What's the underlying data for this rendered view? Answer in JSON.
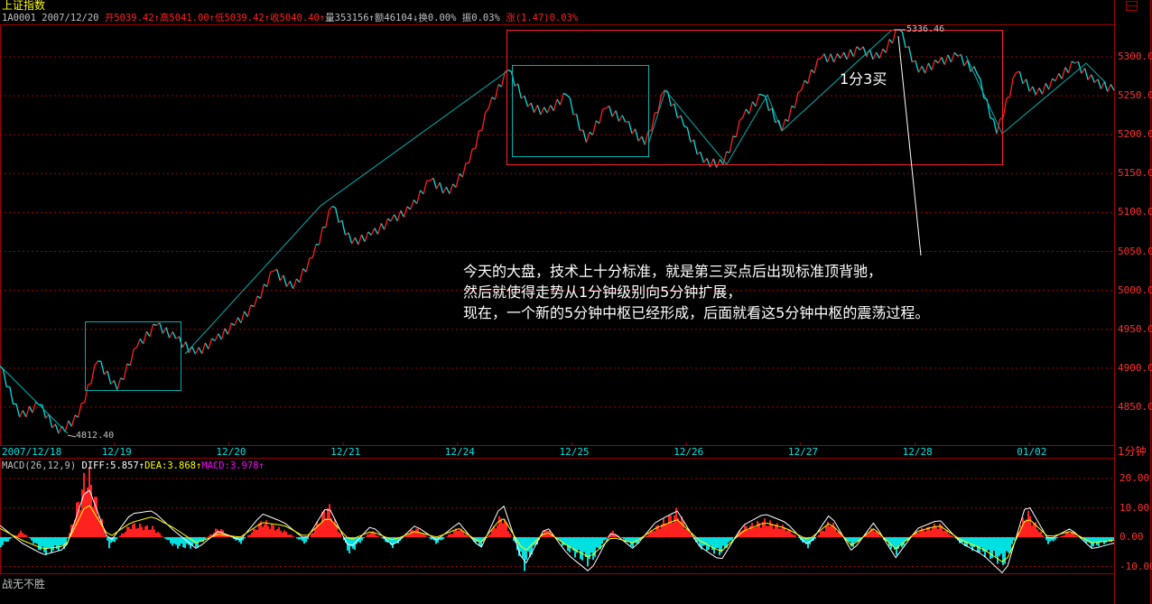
{
  "header": {
    "title": "上证指数",
    "code": "1A0001",
    "date": "2007/12/20",
    "open": "开5039.42↑",
    "high": "高5041.00↑",
    "low": "低5039.42↑",
    "close": "收5040.40↑",
    "volume": "量353156↑",
    "amount": "额46104↓",
    "turnover": "换0.00%",
    "amplitude": "振0.03%",
    "change": "涨(1.47)0.03%"
  },
  "colors": {
    "up": "#ff2020",
    "down": "#00e0e0",
    "grid": "#a00000",
    "trend": "#00b0b0",
    "box_red": "#ff2020"
  },
  "chart_data": [
    {
      "type": "line",
      "name": "price",
      "ylim": [
        4800,
        5340
      ],
      "yticks": [
        4850,
        4900,
        4950,
        5000,
        5050,
        5100,
        5150,
        5200,
        5250,
        5300
      ],
      "ytick_labels": [
        "4850.00",
        "4900.00",
        "4950.00",
        "5000.00",
        "5050.00",
        "5100.00",
        "5150.00",
        "5200.00",
        "5250.00",
        "5300.00"
      ],
      "xtick_labels": [
        "2007/12/18",
        "12/19",
        "12/20",
        "12/21",
        "12/24",
        "12/25",
        "12/26",
        "12/27",
        "12/28",
        "01/02"
      ],
      "period": "1分钟",
      "high_label": "5336.46",
      "low_label": "4812.40",
      "values": [
        4903,
        4837,
        4853,
        4816,
        4837,
        4909,
        4872,
        4927,
        4955,
        4938,
        4918,
        4935,
        4955,
        4979,
        5025,
        5002,
        5042,
        5108,
        5060,
        5071,
        5089,
        5104,
        5141,
        5124,
        5164,
        5234,
        5283,
        5236,
        5228,
        5251,
        5190,
        5234,
        5216,
        5187,
        5257,
        5211,
        5164,
        5162,
        5222,
        5251,
        5205,
        5257,
        5298,
        5298,
        5309,
        5298,
        5335,
        5280,
        5292,
        5301,
        5278,
        5201,
        5280,
        5251,
        5269,
        5292,
        5267,
        5257
      ],
      "grid": true
    },
    {
      "type": "bar",
      "name": "MACD",
      "label": "MACD(26,12,9)",
      "diff_label": "DIFF:5.857↑",
      "dea_label": "DEA:3.868↑",
      "macd_label": "MACD:3.978↑",
      "ylim": [
        -14,
        24
      ],
      "yticks": [
        -10,
        0,
        10,
        20
      ],
      "ytick_labels": [
        "-10.00",
        "0.00",
        "10.00",
        "20.00"
      ],
      "hist": [
        -3,
        2,
        -5,
        -3,
        21,
        -3,
        4,
        3,
        -3,
        -3,
        3,
        -2,
        5,
        2,
        -2,
        10,
        -5,
        2,
        -3,
        3,
        -2,
        3,
        -3,
        7,
        -9,
        3,
        -4,
        -8,
        2,
        -3,
        3,
        8,
        -3,
        -5,
        3,
        5,
        3,
        -3,
        5,
        -3,
        3,
        -5,
        2,
        4,
        -2,
        -5,
        -8,
        8,
        -2,
        2,
        -3,
        -1
      ],
      "diff": [
        4,
        -2,
        -6,
        -4,
        18,
        -2,
        8,
        9,
        2,
        -4,
        2,
        -1,
        8,
        5,
        -1,
        11,
        -4,
        4,
        -3,
        4,
        -1,
        5,
        -4,
        12,
        -10,
        4,
        -6,
        -12,
        2,
        -4,
        5,
        9,
        -3,
        -8,
        4,
        8,
        5,
        -3,
        8,
        -5,
        5,
        -7,
        3,
        6,
        -2,
        -6,
        -13,
        12,
        -1,
        3,
        -4,
        -2
      ],
      "dea": [
        3,
        -1,
        -4,
        -3,
        12,
        0,
        5,
        7,
        3,
        -2,
        1,
        0,
        5,
        4,
        0,
        7,
        -1,
        2,
        -1,
        2,
        0,
        3,
        -2,
        7,
        -5,
        2,
        -3,
        -7,
        0,
        -2,
        3,
        6,
        -1,
        -5,
        2,
        5,
        3,
        -1,
        5,
        -3,
        3,
        -4,
        2,
        4,
        -1,
        -4,
        -9,
        7,
        0,
        2,
        -2,
        -1
      ]
    }
  ],
  "annotations": {
    "text_lines": [
      "今天的大盘，技术上十分标准，就是第三买点后出现标准顶背驰，",
      "然后就使得走势从1分钟级别向5分钟扩展，",
      "现在，一个新的5分钟中枢已经形成，后面就看这5分钟中枢的震荡过程。"
    ],
    "buy_point": "1分3买"
  },
  "footer": "战无不胜"
}
